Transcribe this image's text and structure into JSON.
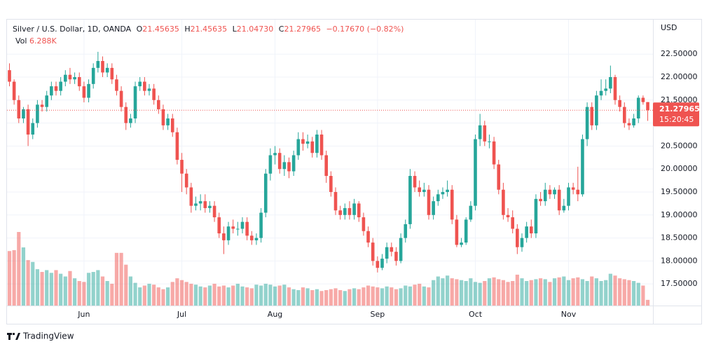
{
  "header": {
    "symbol": "Silver / U.S. Dollar, 1D, OANDA",
    "ohlc": [
      {
        "label": "O",
        "value": "21.45635"
      },
      {
        "label": "H",
        "value": "21.45635"
      },
      {
        "label": "L",
        "value": "21.04730"
      },
      {
        "label": "C",
        "value": "21.27965"
      }
    ],
    "change": "−0.17670 (−0.82%)",
    "volume_label": "Vol",
    "volume_value": "6.288K"
  },
  "chart_data": {
    "type": "candlestick",
    "currency": "USD",
    "categories": [
      null,
      null,
      null,
      null,
      null,
      null,
      null,
      null,
      null,
      null,
      null,
      null,
      null,
      null,
      null,
      null,
      "Jun",
      null,
      null,
      null,
      null,
      null,
      null,
      null,
      null,
      null,
      null,
      null,
      null,
      null,
      null,
      null,
      null,
      null,
      null,
      null,
      null,
      "Jul",
      null,
      null,
      null,
      null,
      null,
      null,
      null,
      null,
      null,
      null,
      null,
      null,
      null,
      null,
      null,
      null,
      null,
      null,
      null,
      "Aug",
      null,
      null,
      null,
      null,
      null,
      null,
      null,
      null,
      null,
      null,
      null,
      null,
      null,
      null,
      null,
      null,
      null,
      null,
      null,
      null,
      null,
      "Sep",
      null,
      null,
      null,
      null,
      null,
      null,
      null,
      null,
      null,
      null,
      null,
      null,
      null,
      null,
      null,
      null,
      null,
      null,
      null,
      null,
      "Oct",
      null,
      null,
      null,
      null,
      null,
      null,
      null,
      null,
      null,
      null,
      null,
      null,
      null,
      null,
      null,
      null,
      null,
      null,
      null,
      "Nov",
      null,
      null,
      null,
      null,
      null,
      null,
      null,
      null,
      null,
      null,
      null,
      null,
      null,
      null,
      null,
      null,
      null
    ],
    "open": [
      22.15,
      21.9,
      21.5,
      21.1,
      21.3,
      20.75,
      21.0,
      21.4,
      21.35,
      21.6,
      21.8,
      21.7,
      21.9,
      22.05,
      21.95,
      22.0,
      21.8,
      21.55,
      21.85,
      22.2,
      22.35,
      22.1,
      22.2,
      21.95,
      21.7,
      21.35,
      21.0,
      21.1,
      21.8,
      21.9,
      21.7,
      21.75,
      21.5,
      21.3,
      20.95,
      21.1,
      20.8,
      20.2,
      19.9,
      19.6,
      19.2,
      19.25,
      19.3,
      19.15,
      19.2,
      18.95,
      18.6,
      18.45,
      18.75,
      18.7,
      18.7,
      18.85,
      18.55,
      18.45,
      18.5,
      19.05,
      19.9,
      20.3,
      20.35,
      20.0,
      20.15,
      19.95,
      20.3,
      20.65,
      20.55,
      20.6,
      20.35,
      20.75,
      20.3,
      19.85,
      19.5,
      19.1,
      19.0,
      19.15,
      19.0,
      19.25,
      18.95,
      18.65,
      18.4,
      18.0,
      17.85,
      18.05,
      18.3,
      18.2,
      18.0,
      18.5,
      18.8,
      19.85,
      19.6,
      19.5,
      19.55,
      19.0,
      19.3,
      19.45,
      19.5,
      19.55,
      18.9,
      18.35,
      18.4,
      18.9,
      19.2,
      20.65,
      20.95,
      20.6,
      20.6,
      20.1,
      19.55,
      19.0,
      18.95,
      18.7,
      18.3,
      18.5,
      18.75,
      18.6,
      19.35,
      19.3,
      19.55,
      19.45,
      19.55,
      19.1,
      19.2,
      19.6,
      19.55,
      19.45,
      20.65,
      21.35,
      20.95,
      21.6,
      21.7,
      21.75,
      22.0,
      21.5,
      21.35,
      21.0,
      20.95,
      21.1,
      21.55,
      21.45635
    ],
    "high": [
      22.3,
      21.95,
      21.6,
      21.35,
      21.4,
      21.1,
      21.5,
      21.5,
      21.7,
      21.9,
      21.9,
      22.0,
      22.15,
      22.2,
      22.1,
      22.1,
      21.9,
      21.95,
      22.3,
      22.55,
      22.45,
      22.3,
      22.3,
      22.05,
      21.8,
      21.45,
      21.2,
      21.9,
      22.0,
      22.0,
      21.85,
      21.85,
      21.6,
      21.4,
      21.2,
      21.2,
      20.9,
      20.35,
      20.0,
      19.7,
      19.4,
      19.45,
      19.45,
      19.3,
      19.3,
      19.05,
      18.75,
      18.85,
      18.9,
      18.85,
      18.95,
      18.95,
      18.65,
      18.6,
      19.15,
      20.0,
      20.45,
      20.5,
      20.45,
      20.3,
      20.25,
      20.4,
      20.8,
      20.8,
      20.75,
      20.7,
      20.85,
      20.85,
      20.4,
      19.95,
      19.6,
      19.2,
      19.25,
      19.3,
      19.35,
      19.3,
      19.05,
      18.75,
      18.5,
      18.1,
      18.15,
      18.4,
      18.4,
      18.3,
      18.6,
      18.9,
      20.0,
      19.95,
      19.75,
      19.7,
      19.65,
      19.4,
      19.55,
      19.6,
      19.75,
      19.65,
      19.0,
      18.5,
      18.95,
      19.3,
      20.75,
      21.2,
      21.05,
      20.75,
      20.7,
      20.2,
      19.7,
      19.15,
      19.1,
      18.8,
      18.6,
      18.85,
      18.9,
      19.45,
      19.5,
      19.7,
      19.65,
      19.6,
      19.65,
      19.35,
      19.7,
      19.7,
      20.05,
      20.75,
      21.45,
      21.45,
      21.7,
      21.95,
      21.95,
      22.25,
      22.05,
      21.6,
      21.45,
      21.1,
      21.2,
      21.6,
      21.6,
      21.45635
    ],
    "low": [
      21.8,
      21.4,
      21.0,
      21.0,
      20.5,
      20.65,
      20.9,
      21.25,
      21.25,
      21.5,
      21.6,
      21.6,
      21.8,
      21.85,
      21.85,
      21.7,
      21.45,
      21.45,
      21.75,
      22.1,
      22.0,
      22.0,
      21.85,
      21.6,
      21.25,
      20.85,
      20.9,
      21.0,
      21.7,
      21.6,
      21.6,
      21.4,
      21.2,
      20.85,
      20.85,
      20.7,
      20.1,
      19.5,
      19.45,
      19.05,
      19.1,
      19.1,
      19.05,
      19.05,
      18.85,
      18.5,
      18.15,
      18.35,
      18.6,
      18.55,
      18.6,
      18.45,
      18.35,
      18.35,
      18.4,
      18.95,
      19.75,
      20.1,
      19.9,
      19.85,
      19.8,
      19.85,
      20.2,
      20.4,
      20.45,
      20.25,
      20.25,
      20.2,
      19.7,
      19.4,
      19.0,
      18.9,
      18.9,
      18.9,
      18.9,
      18.85,
      18.55,
      18.3,
      17.9,
      17.75,
      17.8,
      17.95,
      18.1,
      17.9,
      17.95,
      18.4,
      18.7,
      19.5,
      19.4,
      19.4,
      18.9,
      18.9,
      19.2,
      19.35,
      19.4,
      18.8,
      18.3,
      18.3,
      18.35,
      18.85,
      19.1,
      20.5,
      20.5,
      20.45,
      20.0,
      19.45,
      18.9,
      18.85,
      18.6,
      18.15,
      18.2,
      18.4,
      18.5,
      18.5,
      19.2,
      19.2,
      19.35,
      19.35,
      19.0,
      19.05,
      19.1,
      19.45,
      19.3,
      19.4,
      20.5,
      20.85,
      20.85,
      21.5,
      21.6,
      21.65,
      21.4,
      21.25,
      20.9,
      20.85,
      20.9,
      21.0,
      21.4,
      21.0473
    ],
    "close": [
      21.9,
      21.5,
      21.1,
      21.3,
      20.75,
      21.0,
      21.4,
      21.35,
      21.6,
      21.8,
      21.7,
      21.9,
      22.05,
      21.95,
      22.0,
      21.8,
      21.55,
      21.85,
      22.2,
      22.35,
      22.1,
      22.2,
      21.95,
      21.7,
      21.35,
      21.0,
      21.1,
      21.8,
      21.9,
      21.7,
      21.75,
      21.5,
      21.3,
      20.95,
      21.1,
      20.8,
      20.2,
      19.9,
      19.6,
      19.2,
      19.25,
      19.3,
      19.15,
      19.2,
      18.95,
      18.6,
      18.45,
      18.75,
      18.7,
      18.7,
      18.85,
      18.55,
      18.45,
      18.5,
      19.05,
      19.9,
      20.3,
      20.35,
      20.0,
      20.15,
      19.95,
      20.3,
      20.65,
      20.55,
      20.6,
      20.35,
      20.75,
      20.3,
      19.85,
      19.5,
      19.1,
      19.0,
      19.15,
      19.0,
      19.25,
      18.95,
      18.65,
      18.4,
      18.0,
      17.85,
      18.05,
      18.3,
      18.2,
      18.0,
      18.5,
      18.8,
      19.85,
      19.6,
      19.5,
      19.55,
      19.0,
      19.3,
      19.45,
      19.5,
      19.55,
      18.9,
      18.35,
      18.4,
      18.9,
      19.2,
      20.65,
      20.95,
      20.6,
      20.6,
      20.1,
      19.55,
      19.0,
      18.95,
      18.7,
      18.3,
      18.5,
      18.75,
      18.6,
      19.35,
      19.3,
      19.55,
      19.45,
      19.55,
      19.1,
      19.2,
      19.6,
      19.55,
      19.45,
      20.65,
      21.35,
      20.95,
      21.6,
      21.7,
      21.75,
      22.0,
      21.5,
      21.35,
      21.0,
      20.95,
      21.1,
      21.55,
      21.45635,
      21.27965
    ],
    "volume": [
      60000,
      61000,
      81000,
      64000,
      50000,
      48000,
      40000,
      37000,
      39000,
      36000,
      39000,
      35000,
      32000,
      38000,
      30000,
      27000,
      26000,
      36000,
      37000,
      39000,
      32000,
      27000,
      24000,
      58000,
      58000,
      45000,
      32000,
      25000,
      20000,
      22000,
      24000,
      23000,
      20000,
      18000,
      20000,
      26000,
      30000,
      28000,
      26000,
      24000,
      23000,
      21000,
      20000,
      22000,
      24000,
      21000,
      22000,
      20000,
      22000,
      24000,
      21000,
      20000,
      19000,
      23000,
      22000,
      24000,
      23000,
      21000,
      22000,
      23000,
      20000,
      18000,
      17000,
      20000,
      19000,
      17000,
      18000,
      16000,
      17000,
      18000,
      19000,
      17000,
      16000,
      18000,
      19000,
      18000,
      20000,
      22000,
      21000,
      20000,
      19000,
      21000,
      20000,
      18000,
      19000,
      22000,
      21000,
      23000,
      24000,
      21000,
      20000,
      28000,
      32000,
      30000,
      33000,
      30000,
      29000,
      28000,
      27000,
      30000,
      26000,
      25000,
      27000,
      30000,
      31000,
      29000,
      28000,
      26000,
      27000,
      34000,
      30000,
      27000,
      28000,
      29000,
      30000,
      29000,
      26000,
      30000,
      31000,
      32000,
      28000,
      30000,
      31000,
      29000,
      27000,
      32000,
      30000,
      27000,
      28000,
      35000,
      33000,
      30000,
      29000,
      28000,
      27000,
      25000,
      22000,
      6288
    ],
    "up_color": "#26a69a",
    "down_color": "#ef5350",
    "ylim": [
      17.03,
      23.25
    ],
    "yticks": [
      {
        "value": 17.5,
        "label": "17.50000"
      },
      {
        "value": 18,
        "label": "18.00000"
      },
      {
        "value": 18.5,
        "label": "18.50000"
      },
      {
        "value": 19,
        "label": "19.00000"
      },
      {
        "value": 19.5,
        "label": "19.50000"
      },
      {
        "value": 20,
        "label": "20.00000"
      },
      {
        "value": 20.5,
        "label": "20.50000"
      },
      {
        "value": 21,
        "label": "21.00000"
      },
      {
        "value": 21.5,
        "label": "21.50000"
      },
      {
        "value": 22,
        "label": "22.00000"
      },
      {
        "value": 22.5,
        "label": "22.50000"
      }
    ],
    "grid": true,
    "last_price": 21.27965,
    "countdown": "15:20:45"
  },
  "footer": {
    "brand": "TradingView"
  }
}
